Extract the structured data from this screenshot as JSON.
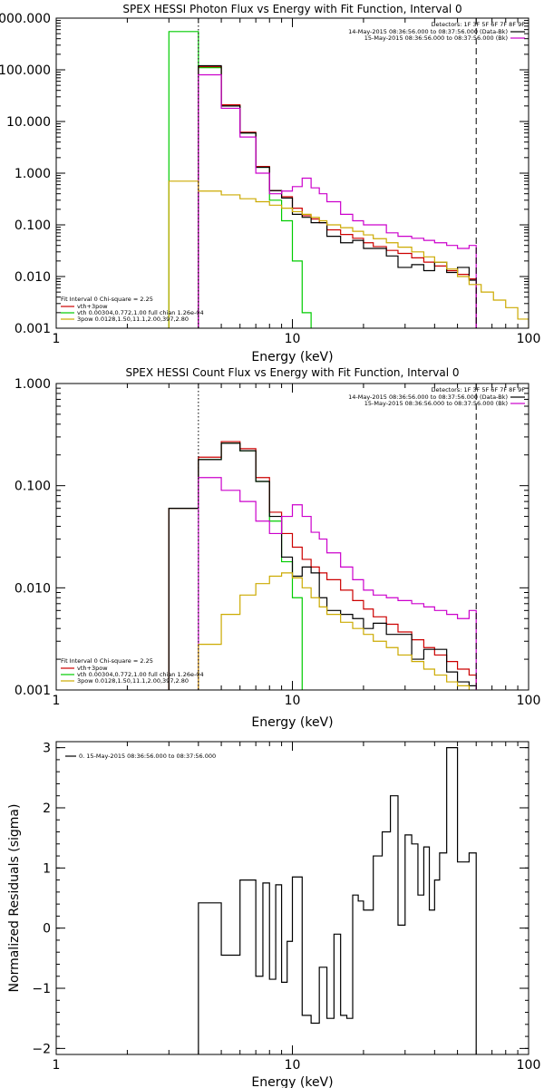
{
  "chart_data": [
    {
      "type": "line",
      "title": "SPEX HESSI Photon Flux vs Energy with Fit Function, Interval 0",
      "xlabel": "Energy (keV)",
      "ylabel": "",
      "xscale": "log",
      "yscale": "log",
      "xlim": [
        1,
        100
      ],
      "ylim": [
        0.001,
        1000
      ],
      "xticks": [
        {
          "v": 1,
          "label": "1"
        },
        {
          "v": 10,
          "label": "10"
        },
        {
          "v": 100,
          "label": "100"
        }
      ],
      "yticks": [
        {
          "v": 0.001,
          "label": "0.001"
        },
        {
          "v": 0.01,
          "label": "0.010"
        },
        {
          "v": 0.1,
          "label": "0.100"
        },
        {
          "v": 1,
          "label": "1.000"
        },
        {
          "v": 10,
          "label": "10.000"
        },
        {
          "v": 100,
          "label": "100.000"
        },
        {
          "v": 1000,
          "label": "1000.000"
        }
      ],
      "vlines": [
        {
          "x": 4,
          "style": "dotted",
          "color": "#000000"
        },
        {
          "x": 60,
          "style": "dashed",
          "color": "#000000"
        }
      ],
      "legend_tr": {
        "header": "Detectors: 1F 3F 5F 6F 7F 8F 9F",
        "lines": [
          {
            "text": "14-May-2015 08:36:56.000 to 08:37:56.000 (Data-Bk)",
            "color": "#000000"
          },
          {
            "text": "15-May-2015 08:36:56.000 to 08:37:56.000 (Bk)",
            "color": "#cc00cc"
          }
        ]
      },
      "legend_bl": {
        "header": "Fit Interval 0   Chi-square = 2.25",
        "lines": [
          {
            "text": "vth+3pow",
            "color": "#cc0000"
          },
          {
            "text": "vth 0.00304,0.772,1.00   full chian 1.26e-04",
            "color": "#00cc00"
          },
          {
            "text": "3pow 0.0128,1.50,11.1,2.00,397,2.80",
            "color": "#ccaa00"
          }
        ]
      },
      "series": [
        {
          "name": "vth 0.00304,0.772,1.00",
          "color": "#00cc00",
          "edges": [
            3,
            4,
            5,
            6,
            7,
            8,
            9,
            10,
            11,
            12
          ],
          "values": [
            550,
            110,
            20,
            6.0,
            1.3,
            0.3,
            0.12,
            0.02,
            0.002
          ]
        },
        {
          "name": "vth+3pow",
          "color": "#cc0000",
          "edges": [
            4,
            5,
            6,
            7,
            8,
            9,
            10,
            11,
            12,
            13,
            14,
            16,
            18,
            20,
            22,
            25,
            28,
            32,
            36,
            40,
            45,
            50,
            56,
            60
          ],
          "values": [
            115,
            21,
            6.2,
            1.35,
            0.46,
            0.35,
            0.21,
            0.15,
            0.13,
            0.11,
            0.08,
            0.065,
            0.055,
            0.045,
            0.038,
            0.032,
            0.028,
            0.023,
            0.019,
            0.016,
            0.013,
            0.011,
            0.009
          ]
        },
        {
          "name": "14-May-2015 08:36:56.000 to 08:37:56.000 (Data-Bk)",
          "color": "#000000",
          "edges": [
            4,
            5,
            6,
            7,
            8,
            9,
            10,
            11,
            12,
            13,
            14,
            16,
            18,
            20,
            22,
            25,
            28,
            32,
            36,
            40,
            45,
            50,
            56,
            60
          ],
          "values": [
            120,
            20,
            6.0,
            1.3,
            0.46,
            0.33,
            0.16,
            0.14,
            0.11,
            0.11,
            0.06,
            0.045,
            0.05,
            0.035,
            0.035,
            0.025,
            0.015,
            0.017,
            0.013,
            0.019,
            0.012,
            0.015,
            0.0085
          ]
        },
        {
          "name": "15-May-2015 08:36:56.000 to 08:37:56.000 (Bk)",
          "color": "#cc00cc",
          "edges": [
            4,
            5,
            6,
            7,
            8,
            9,
            10,
            11,
            12,
            13,
            14,
            16,
            18,
            20,
            22,
            25,
            28,
            32,
            36,
            40,
            45,
            50,
            56,
            60
          ],
          "values": [
            80,
            18,
            5.0,
            1.0,
            0.4,
            0.45,
            0.55,
            0.8,
            0.52,
            0.4,
            0.28,
            0.16,
            0.12,
            0.1,
            0.1,
            0.07,
            0.06,
            0.055,
            0.05,
            0.045,
            0.04,
            0.035,
            0.04
          ]
        },
        {
          "name": "3pow 0.0128,1.50,11.1,2.00,397,2.80",
          "color": "#ccaa00",
          "edges": [
            3,
            4,
            5,
            6,
            7,
            8,
            9,
            10,
            11,
            12,
            13,
            14,
            16,
            18,
            20,
            22,
            25,
            28,
            32,
            36,
            40,
            45,
            50,
            56,
            63,
            71,
            80,
            90,
            100
          ],
          "values": [
            0.7,
            0.45,
            0.38,
            0.32,
            0.28,
            0.24,
            0.21,
            0.18,
            0.16,
            0.14,
            0.12,
            0.1,
            0.088,
            0.075,
            0.064,
            0.054,
            0.045,
            0.037,
            0.03,
            0.024,
            0.019,
            0.014,
            0.01,
            0.007,
            0.005,
            0.0035,
            0.0025,
            0.0015
          ]
        }
      ]
    },
    {
      "type": "line",
      "title": "SPEX HESSI Count Flux vs Energy with Fit Function, Interval 0",
      "xlabel": "Energy (keV)",
      "ylabel": "",
      "xscale": "log",
      "yscale": "log",
      "xlim": [
        1,
        100
      ],
      "ylim": [
        0.001,
        1
      ],
      "xticks": [
        {
          "v": 1,
          "label": "1"
        },
        {
          "v": 10,
          "label": "10"
        },
        {
          "v": 100,
          "label": "100"
        }
      ],
      "yticks": [
        {
          "v": 0.001,
          "label": "0.001"
        },
        {
          "v": 0.01,
          "label": "0.010"
        },
        {
          "v": 0.1,
          "label": "0.100"
        },
        {
          "v": 1,
          "label": "1.000"
        }
      ],
      "vlines": [
        {
          "x": 4,
          "style": "dotted",
          "color": "#000000"
        },
        {
          "x": 60,
          "style": "dashed",
          "color": "#000000"
        }
      ],
      "legend_tr": {
        "header": "Detectors: 1F 3F 5F 6F 7F 8F 9F",
        "lines": [
          {
            "text": "14-May-2015 08:36:56.000 to 08:37:56.000 (Data-Bk)",
            "color": "#000000"
          },
          {
            "text": "15-May-2015 08:36:56.000 to 08:37:56.000 (Bk)",
            "color": "#cc00cc"
          }
        ]
      },
      "legend_bl": {
        "header": "Fit Interval 0   Chi-square = 2.25",
        "lines": [
          {
            "text": "vth+3pow",
            "color": "#cc0000"
          },
          {
            "text": "vth 0.00304,0.772,1.00   full chian 1.26e-04",
            "color": "#00cc00"
          },
          {
            "text": "3pow 0.0128,1.50,11.1,2.00,397,2.80",
            "color": "#ccaa00"
          }
        ]
      },
      "series": [
        {
          "name": "vth 0.00304,0.772,1.00",
          "color": "#00cc00",
          "edges": [
            3,
            4,
            5,
            6,
            7,
            8,
            9,
            10,
            11
          ],
          "values": [
            0.06,
            0.18,
            0.26,
            0.22,
            0.11,
            0.045,
            0.018,
            0.008
          ]
        },
        {
          "name": "vth+3pow",
          "color": "#cc0000",
          "edges": [
            3,
            4,
            5,
            6,
            7,
            8,
            9,
            10,
            11,
            12,
            13,
            14,
            16,
            18,
            20,
            22,
            25,
            28,
            32,
            36,
            40,
            45,
            50,
            56,
            60
          ],
          "values": [
            0.06,
            0.19,
            0.27,
            0.23,
            0.12,
            0.055,
            0.034,
            0.025,
            0.019,
            0.016,
            0.014,
            0.012,
            0.0095,
            0.0075,
            0.0062,
            0.0052,
            0.0044,
            0.0037,
            0.0031,
            0.0026,
            0.0022,
            0.0019,
            0.0016,
            0.0014
          ]
        },
        {
          "name": "14-May-2015 08:36:56.000 to 08:37:56.000 (Data-Bk)",
          "color": "#000000",
          "edges": [
            3,
            4,
            5,
            6,
            7,
            8,
            9,
            10,
            11,
            12,
            13,
            14,
            16,
            18,
            20,
            22,
            25,
            28,
            32,
            36,
            40,
            45,
            50,
            56,
            60
          ],
          "values": [
            0.06,
            0.18,
            0.26,
            0.22,
            0.11,
            0.05,
            0.02,
            0.013,
            0.016,
            0.014,
            0.008,
            0.006,
            0.0055,
            0.005,
            0.004,
            0.0045,
            0.0035,
            0.0035,
            0.002,
            0.0025,
            0.0025,
            0.0015,
            0.0012,
            0.0011
          ]
        },
        {
          "name": "15-May-2015 08:36:56.000 to 08:37:56.000 (Bk)",
          "color": "#cc00cc",
          "edges": [
            4,
            5,
            6,
            7,
            8,
            9,
            10,
            11,
            12,
            13,
            14,
            16,
            18,
            20,
            22,
            25,
            28,
            32,
            36,
            40,
            45,
            50,
            56,
            60
          ],
          "values": [
            0.12,
            0.09,
            0.07,
            0.045,
            0.034,
            0.05,
            0.065,
            0.05,
            0.035,
            0.03,
            0.022,
            0.016,
            0.012,
            0.0095,
            0.0085,
            0.008,
            0.0075,
            0.007,
            0.0065,
            0.006,
            0.0055,
            0.005,
            0.006
          ]
        },
        {
          "name": "3pow 0.0128,1.50,11.1,2.00,397,2.80",
          "color": "#ccaa00",
          "edges": [
            4,
            5,
            6,
            7,
            8,
            9,
            10,
            11,
            12,
            13,
            14,
            16,
            18,
            20,
            22,
            25,
            28,
            32,
            36,
            40,
            45,
            50,
            56
          ],
          "values": [
            0.0028,
            0.0055,
            0.0085,
            0.011,
            0.013,
            0.014,
            0.0125,
            0.01,
            0.008,
            0.0065,
            0.0055,
            0.0046,
            0.004,
            0.0035,
            0.003,
            0.0026,
            0.0022,
            0.0019,
            0.0016,
            0.0014,
            0.0012,
            0.0011
          ]
        }
      ]
    },
    {
      "type": "line",
      "title": "",
      "xlabel": "Energy (keV)",
      "ylabel": "Normalized Residuals (sigma)",
      "xscale": "log",
      "yscale": "linear",
      "xlim": [
        1,
        100
      ],
      "ylim": [
        -2.1,
        3.1
      ],
      "xticks": [
        {
          "v": 1,
          "label": "1"
        },
        {
          "v": 10,
          "label": "10"
        },
        {
          "v": 100,
          "label": "100"
        }
      ],
      "yticks": [
        {
          "v": -2,
          "label": "−2"
        },
        {
          "v": -1,
          "label": "−1"
        },
        {
          "v": 0,
          "label": "0"
        },
        {
          "v": 1,
          "label": "1"
        },
        {
          "v": 2,
          "label": "2"
        },
        {
          "v": 3,
          "label": "3"
        }
      ],
      "legend_tl": {
        "lines": [
          {
            "text": "0. 15-May-2015 08:36:56.000 to 08:37:56.000",
            "color": "#000000"
          }
        ]
      },
      "series": [
        {
          "name": "0. 15-May-2015 08:36:56.000 to 08:37:56.000",
          "color": "#000000",
          "edges": [
            4,
            5,
            6,
            7,
            7.5,
            8,
            8.5,
            9,
            9.5,
            10,
            11,
            12,
            13,
            14,
            15,
            16,
            17,
            18,
            19,
            20,
            22,
            24,
            26,
            28,
            30,
            32,
            34,
            36,
            38,
            40,
            42,
            45,
            50,
            56,
            60
          ],
          "values": [
            0.42,
            -0.45,
            0.8,
            -0.8,
            0.75,
            -0.85,
            0.72,
            -0.9,
            -0.22,
            0.85,
            -1.45,
            -1.58,
            -0.65,
            -1.5,
            -0.1,
            -1.45,
            -1.5,
            0.55,
            0.45,
            0.3,
            1.2,
            1.6,
            2.2,
            0.05,
            1.55,
            1.4,
            0.55,
            1.35,
            0.3,
            0.8,
            1.25,
            3.0,
            1.1,
            1.25
          ]
        }
      ]
    }
  ]
}
